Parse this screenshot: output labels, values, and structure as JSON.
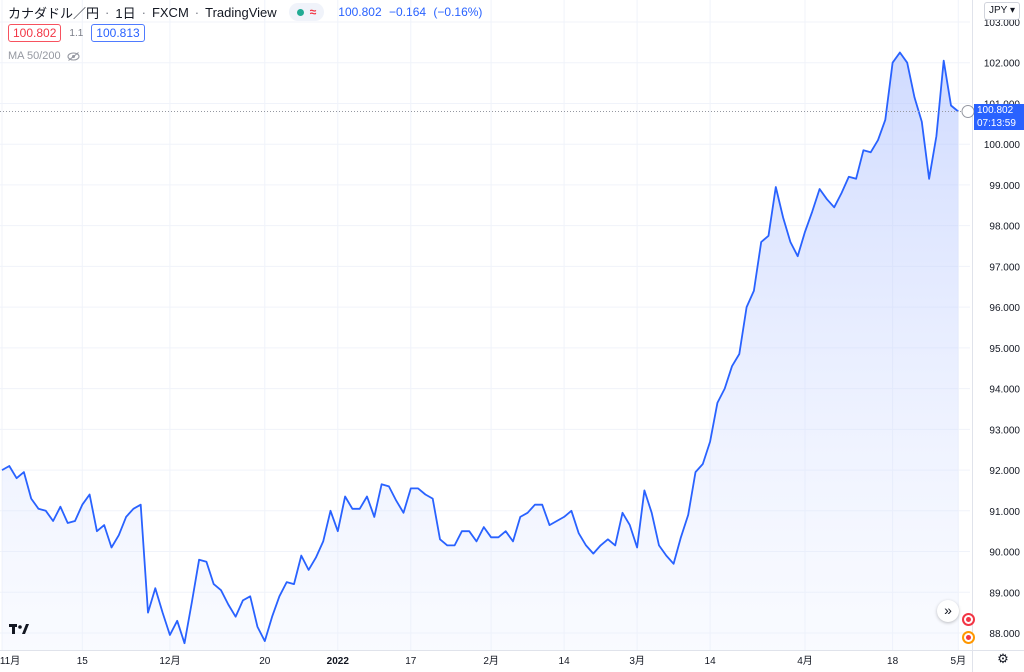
{
  "header": {
    "symbol": "カナダドル／円",
    "interval": "1日",
    "exchange": "FXCM",
    "source": "TradingView",
    "last_price": "100.802",
    "change": "−0.164",
    "change_pct": "(−0.16%)"
  },
  "price_boxes": {
    "sell": "100.802",
    "spread": "1.1",
    "buy": "100.813"
  },
  "indicator": {
    "label": "MA 50/200"
  },
  "currency": "JPY",
  "last_price_label": {
    "price": "100.802",
    "countdown": "07:13:59"
  },
  "colors": {
    "line": "#2962ff",
    "fill": "#dbe4ff",
    "grid": "#f0f3fa",
    "price_box": "#2962ff"
  },
  "icons": {
    "eye": "eye-crossed-icon",
    "scroll": "chevron-double-right-icon",
    "settings": "gear-icon",
    "logo": "tradingview-logo-icon"
  },
  "chart_data": {
    "type": "area",
    "title": "カナダドル／円 · 1日 · FXCM",
    "ylabel": "",
    "xlabel": "",
    "ylim": [
      87.7,
      103.2
    ],
    "yticks": [
      88,
      89,
      90,
      91,
      92,
      93,
      94,
      95,
      96,
      97,
      98,
      99,
      100,
      101,
      102,
      103
    ],
    "ytick_labels": [
      "88.000",
      "89.000",
      "90.000",
      "91.000",
      "92.000",
      "93.000",
      "94.000",
      "95.000",
      "96.000",
      "97.000",
      "98.000",
      "99.000",
      "100.000",
      "101.000",
      "102.000",
      "103.000"
    ],
    "xticks": [
      {
        "label": "11月",
        "i": 0
      },
      {
        "label": "15",
        "i": 11
      },
      {
        "label": "12月",
        "i": 23
      },
      {
        "label": "20",
        "i": 36
      },
      {
        "label": "2022",
        "i": 46
      },
      {
        "label": "17",
        "i": 56
      },
      {
        "label": "2月",
        "i": 67
      },
      {
        "label": "14",
        "i": 77
      },
      {
        "label": "3月",
        "i": 87
      },
      {
        "label": "14",
        "i": 97
      },
      {
        "label": "4月",
        "i": 110
      },
      {
        "label": "18",
        "i": 122
      },
      {
        "label": "5月",
        "i": 131
      }
    ],
    "series": [
      {
        "values": [
          92.0,
          92.1,
          91.8,
          91.95,
          91.3,
          91.05,
          91.0,
          90.75,
          91.1,
          90.7,
          90.75,
          91.15,
          91.4,
          90.5,
          90.65,
          90.1,
          90.4,
          90.85,
          91.05,
          91.15,
          88.5,
          89.1,
          88.5,
          87.95,
          88.3,
          87.75,
          88.75,
          89.8,
          89.75,
          89.2,
          89.05,
          88.7,
          88.4,
          88.8,
          88.9,
          88.15,
          87.8,
          88.4,
          88.9,
          89.25,
          89.2,
          89.9,
          89.55,
          89.85,
          90.25,
          91.0,
          90.5,
          91.35,
          91.05,
          91.05,
          91.35,
          90.85,
          91.65,
          91.6,
          91.25,
          90.95,
          91.55,
          91.55,
          91.4,
          91.3,
          90.3,
          90.15,
          90.15,
          90.5,
          90.5,
          90.25,
          90.6,
          90.35,
          90.35,
          90.5,
          90.25,
          90.85,
          90.95,
          91.15,
          91.15,
          90.65,
          90.75,
          90.85,
          91.0,
          90.45,
          90.15,
          89.95,
          90.15,
          90.3,
          90.15,
          90.95,
          90.65,
          90.1,
          91.5,
          90.95,
          90.15,
          89.9,
          89.7,
          90.35,
          90.9,
          91.95,
          92.15,
          92.7,
          93.65,
          94.0,
          94.55,
          94.85,
          96.0,
          96.4,
          97.6,
          97.75,
          98.95,
          98.2,
          97.6,
          97.25,
          97.85,
          98.35,
          98.9,
          98.65,
          98.45,
          98.8,
          99.2,
          99.15,
          99.85,
          99.8,
          100.1,
          100.6,
          102.0,
          102.25,
          102.0,
          101.15,
          100.55,
          99.15,
          100.2,
          102.05,
          100.95,
          100.802
        ]
      }
    ],
    "last_value": 100.802,
    "grid": true,
    "legend": "none"
  }
}
